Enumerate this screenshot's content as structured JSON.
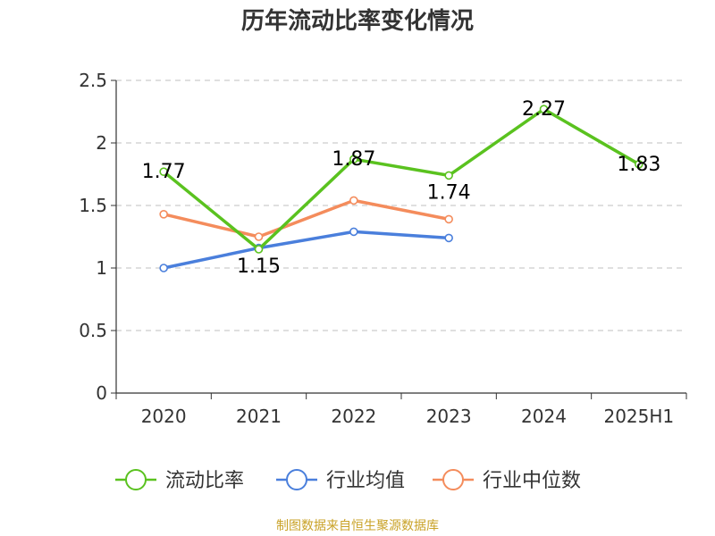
{
  "title": "历年流动比率变化情况",
  "source_note": "制图数据来自恒生聚源数据库",
  "colors": {
    "grid": "#cccccc",
    "axis": "#333333",
    "text": "#333333",
    "source": "#c9a227"
  },
  "chart_data": {
    "type": "line",
    "title": "历年流动比率变化情况",
    "categories": [
      "2020",
      "2021",
      "2022",
      "2023",
      "2024",
      "2025H1"
    ],
    "ylim": [
      0,
      2.5
    ],
    "yticks": [
      "0",
      "0.5",
      "1",
      "1.5",
      "2",
      "2.5"
    ],
    "grid": "horizontal-dashed",
    "legend_position": "bottom",
    "series": [
      {
        "name": "流动比率",
        "color": "#5ac21f",
        "values": [
          1.77,
          1.15,
          1.87,
          1.74,
          2.27,
          1.83
        ],
        "labels": [
          "1.77",
          "1.15",
          "1.87",
          "1.74",
          "2.27",
          "1.83"
        ]
      },
      {
        "name": "行业均值",
        "color": "#4a7fdc",
        "values": [
          1.0,
          1.16,
          1.29,
          1.24,
          null,
          null
        ]
      },
      {
        "name": "行业中位数",
        "color": "#f48c5c",
        "values": [
          1.43,
          1.25,
          1.54,
          1.39,
          null,
          null
        ]
      }
    ]
  }
}
